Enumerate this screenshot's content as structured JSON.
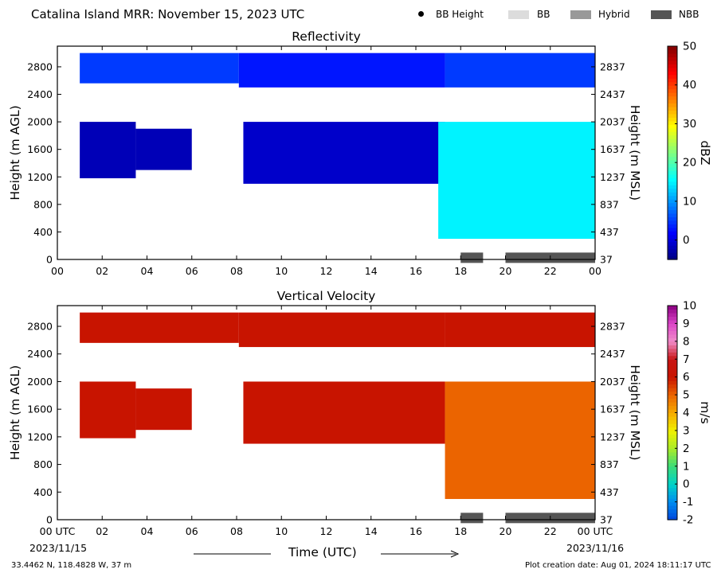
{
  "header": {
    "title": "Catalina Island MRR:  November 15, 2023 UTC",
    "legend": [
      {
        "label": "BB Height",
        "marker": "dot",
        "color": "#000000"
      },
      {
        "label": "BB",
        "marker": "box",
        "color": "#dcdcdc"
      },
      {
        "label": "Hybrid",
        "marker": "box",
        "color": "#999999"
      },
      {
        "label": "NBB",
        "marker": "box",
        "color": "#555555"
      }
    ]
  },
  "footer": {
    "location": "33.4462 N, 118.4828 W, 37 m",
    "creation": "Plot creation date: Aug 01, 2024 18:11:17 UTC",
    "time_label": "Time (UTC)",
    "start_date": "2023/11/15",
    "end_date": "2023/11/16"
  },
  "chart_data": [
    {
      "type": "heatmap",
      "title": "Reflectivity",
      "ylabel": "Height (m AGL)",
      "ylabel_right": "Height (m MSL)",
      "colorbar_label": "dBZ",
      "x_ticks": [
        "00",
        "02",
        "04",
        "06",
        "08",
        "10",
        "12",
        "14",
        "16",
        "18",
        "20",
        "22",
        "00"
      ],
      "xlim_hours": [
        0,
        24
      ],
      "ylim": [
        0,
        3100
      ],
      "y_ticks": [
        0,
        400,
        800,
        1200,
        1600,
        2000,
        2400,
        2800
      ],
      "y_ticks_right": [
        "37",
        "437",
        "837",
        "1237",
        "1637",
        "2037",
        "2437",
        "2837"
      ],
      "colorbar": {
        "min": -5,
        "max": 50,
        "ticks": [
          0,
          10,
          20,
          30,
          40,
          50
        ]
      },
      "regions": [
        {
          "t0": 1.0,
          "t1": 8.1,
          "h0": 2560,
          "h1": 3000,
          "value": 5
        },
        {
          "t0": 8.1,
          "t1": 17.3,
          "h0": 2500,
          "h1": 3000,
          "value": 3
        },
        {
          "t0": 17.3,
          "t1": 24,
          "h0": 2500,
          "h1": 3000,
          "value": 5
        },
        {
          "t0": 1.0,
          "t1": 3.5,
          "h0": 1180,
          "h1": 2000,
          "value": -2
        },
        {
          "t0": 3.5,
          "t1": 6.0,
          "h0": 1300,
          "h1": 1900,
          "value": -2
        },
        {
          "t0": 8.3,
          "t1": 17.3,
          "h0": 1100,
          "h1": 2000,
          "value": -1
        },
        {
          "t0": 17.0,
          "t1": 24,
          "h0": 300,
          "h1": 2000,
          "value": 15
        }
      ],
      "bright_band_type": [
        {
          "t0": 18.0,
          "t1": 19.0,
          "type": "NBB"
        },
        {
          "t0": 20.0,
          "t1": 24.0,
          "type": "NBB"
        }
      ]
    },
    {
      "type": "heatmap",
      "title": "Vertical Velocity",
      "ylabel": "Height (m AGL)",
      "ylabel_right": "Height (m MSL)",
      "colorbar_label": "m/s",
      "x_ticks": [
        "00 UTC",
        "02",
        "04",
        "06",
        "08",
        "10",
        "12",
        "14",
        "16",
        "18",
        "20",
        "22",
        "00 UTC"
      ],
      "xlim_hours": [
        0,
        24
      ],
      "ylim": [
        0,
        3100
      ],
      "y_ticks": [
        0,
        400,
        800,
        1200,
        1600,
        2000,
        2400,
        2800
      ],
      "y_ticks_right": [
        "37",
        "437",
        "837",
        "1237",
        "1637",
        "2037",
        "2437",
        "2837"
      ],
      "colorbar": {
        "min": -2,
        "max": 10,
        "ticks": [
          -2,
          -1,
          0,
          1,
          2,
          3,
          4,
          5,
          6,
          7,
          8,
          9,
          10
        ]
      },
      "regions": [
        {
          "t0": 1.0,
          "t1": 8.1,
          "h0": 2560,
          "h1": 3000,
          "value": 6
        },
        {
          "t0": 8.1,
          "t1": 17.3,
          "h0": 2500,
          "h1": 3000,
          "value": 6
        },
        {
          "t0": 17.3,
          "t1": 24,
          "h0": 2500,
          "h1": 3000,
          "value": 6
        },
        {
          "t0": 1.0,
          "t1": 3.5,
          "h0": 1180,
          "h1": 2000,
          "value": 6
        },
        {
          "t0": 3.5,
          "t1": 6.0,
          "h0": 1300,
          "h1": 1900,
          "value": 6
        },
        {
          "t0": 8.3,
          "t1": 17.3,
          "h0": 1100,
          "h1": 2000,
          "value": 6
        },
        {
          "t0": 17.3,
          "t1": 24,
          "h0": 300,
          "h1": 2000,
          "value": 5
        }
      ],
      "bright_band_type": [
        {
          "t0": 18.0,
          "t1": 19.0,
          "type": "NBB"
        },
        {
          "t0": 20.0,
          "t1": 24.0,
          "type": "NBB"
        }
      ]
    }
  ]
}
